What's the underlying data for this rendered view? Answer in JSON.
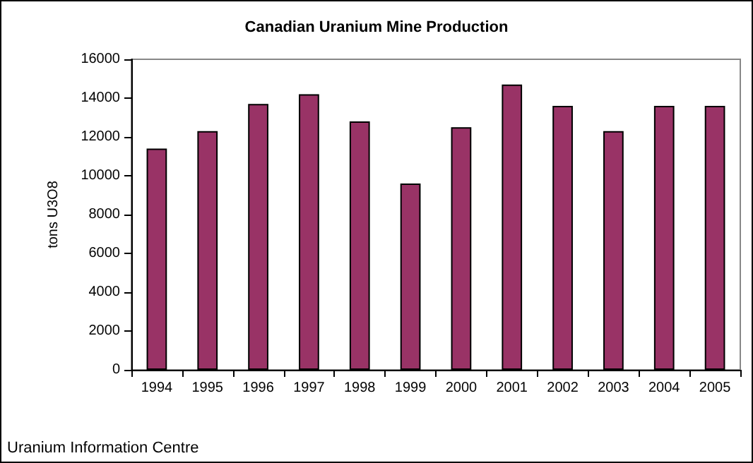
{
  "chart_data": {
    "type": "bar",
    "title": "Canadian Uranium Mine Production",
    "ylabel": "tons U3O8",
    "categories": [
      "1994",
      "1995",
      "1996",
      "1997",
      "1998",
      "1999",
      "2000",
      "2001",
      "2002",
      "2003",
      "2004",
      "2005"
    ],
    "values": [
      11400,
      12300,
      13700,
      14200,
      12800,
      9600,
      12500,
      14700,
      13600,
      12300,
      13600,
      13600
    ],
    "color": "#993366",
    "ylim": [
      0,
      16000
    ],
    "yticks": [
      0,
      2000,
      4000,
      6000,
      8000,
      10000,
      12000,
      14000,
      16000
    ],
    "annotations": [
      "Uranium Information Centre"
    ]
  }
}
